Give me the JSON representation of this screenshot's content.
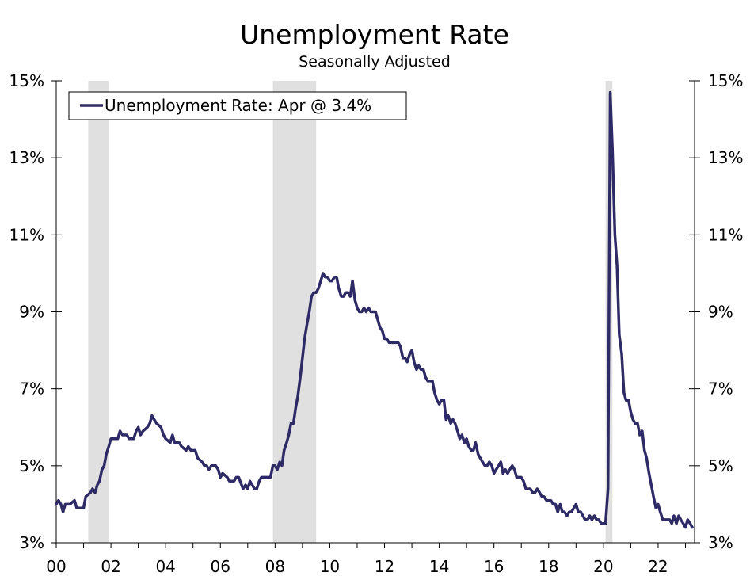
{
  "chart_data": {
    "type": "line",
    "title": "Unemployment Rate",
    "subtitle": "Seasonally Adjusted",
    "xlabel": "",
    "ylabel": "",
    "x_range": [
      2000.0,
      2023.3333
    ],
    "ylim": [
      3,
      15
    ],
    "y_ticks": [
      3,
      5,
      7,
      9,
      11,
      13,
      15
    ],
    "y_tick_labels": [
      "3%",
      "5%",
      "7%",
      "9%",
      "11%",
      "13%",
      "15%"
    ],
    "x_ticks": [
      2000,
      2002,
      2004,
      2006,
      2008,
      2010,
      2012,
      2014,
      2016,
      2018,
      2020,
      2022
    ],
    "x_tick_labels": [
      "00",
      "02",
      "04",
      "06",
      "08",
      "10",
      "12",
      "14",
      "16",
      "18",
      "20",
      "22"
    ],
    "grid": false,
    "legend": {
      "placement": "top-left",
      "entries": [
        "Unemployment Rate: Apr @ 3.4%"
      ]
    },
    "line_color": "#2e2a66",
    "recession_color": "#e0e0e0",
    "recessions": [
      {
        "start": 2001.17,
        "end": 2001.92
      },
      {
        "start": 2007.92,
        "end": 2009.5
      },
      {
        "start": 2020.08,
        "end": 2020.33
      }
    ],
    "series": [
      {
        "name": "Unemployment Rate: Apr @ 3.4%",
        "points": [
          [
            2000.0,
            4.0
          ],
          [
            2000.08,
            4.1
          ],
          [
            2000.17,
            4.0
          ],
          [
            2000.25,
            3.8
          ],
          [
            2000.33,
            4.0
          ],
          [
            2000.5,
            4.0
          ],
          [
            2000.67,
            4.1
          ],
          [
            2000.75,
            3.9
          ],
          [
            2000.92,
            3.9
          ],
          [
            2001.0,
            3.9
          ],
          [
            2001.08,
            4.2
          ],
          [
            2001.25,
            4.3
          ],
          [
            2001.33,
            4.4
          ],
          [
            2001.42,
            4.3
          ],
          [
            2001.5,
            4.5
          ],
          [
            2001.58,
            4.6
          ],
          [
            2001.67,
            4.9
          ],
          [
            2001.75,
            5.0
          ],
          [
            2001.83,
            5.3
          ],
          [
            2001.92,
            5.5
          ],
          [
            2002.0,
            5.7
          ],
          [
            2002.17,
            5.7
          ],
          [
            2002.25,
            5.7
          ],
          [
            2002.33,
            5.9
          ],
          [
            2002.42,
            5.8
          ],
          [
            2002.58,
            5.8
          ],
          [
            2002.67,
            5.7
          ],
          [
            2002.83,
            5.7
          ],
          [
            2002.92,
            5.9
          ],
          [
            2003.0,
            6.0
          ],
          [
            2003.08,
            5.8
          ],
          [
            2003.17,
            5.9
          ],
          [
            2003.33,
            6.0
          ],
          [
            2003.42,
            6.1
          ],
          [
            2003.5,
            6.3
          ],
          [
            2003.58,
            6.2
          ],
          [
            2003.67,
            6.1
          ],
          [
            2003.83,
            6.0
          ],
          [
            2003.92,
            5.8
          ],
          [
            2004.0,
            5.7
          ],
          [
            2004.17,
            5.6
          ],
          [
            2004.25,
            5.8
          ],
          [
            2004.33,
            5.6
          ],
          [
            2004.5,
            5.6
          ],
          [
            2004.58,
            5.5
          ],
          [
            2004.75,
            5.4
          ],
          [
            2004.83,
            5.5
          ],
          [
            2004.92,
            5.4
          ],
          [
            2005.08,
            5.4
          ],
          [
            2005.17,
            5.2
          ],
          [
            2005.33,
            5.1
          ],
          [
            2005.42,
            5.0
          ],
          [
            2005.5,
            5.0
          ],
          [
            2005.58,
            4.9
          ],
          [
            2005.67,
            5.0
          ],
          [
            2005.83,
            5.0
          ],
          [
            2005.92,
            4.9
          ],
          [
            2006.0,
            4.7
          ],
          [
            2006.08,
            4.8
          ],
          [
            2006.25,
            4.7
          ],
          [
            2006.33,
            4.6
          ],
          [
            2006.5,
            4.6
          ],
          [
            2006.58,
            4.7
          ],
          [
            2006.67,
            4.7
          ],
          [
            2006.83,
            4.4
          ],
          [
            2006.92,
            4.5
          ],
          [
            2007.0,
            4.4
          ],
          [
            2007.08,
            4.6
          ],
          [
            2007.25,
            4.4
          ],
          [
            2007.33,
            4.4
          ],
          [
            2007.42,
            4.6
          ],
          [
            2007.5,
            4.7
          ],
          [
            2007.67,
            4.7
          ],
          [
            2007.75,
            4.7
          ],
          [
            2007.83,
            4.7
          ],
          [
            2007.92,
            5.0
          ],
          [
            2008.0,
            5.0
          ],
          [
            2008.08,
            4.9
          ],
          [
            2008.17,
            5.1
          ],
          [
            2008.25,
            5.0
          ],
          [
            2008.33,
            5.4
          ],
          [
            2008.42,
            5.6
          ],
          [
            2008.5,
            5.8
          ],
          [
            2008.58,
            6.1
          ],
          [
            2008.67,
            6.1
          ],
          [
            2008.75,
            6.5
          ],
          [
            2008.83,
            6.8
          ],
          [
            2008.92,
            7.3
          ],
          [
            2009.0,
            7.8
          ],
          [
            2009.08,
            8.3
          ],
          [
            2009.17,
            8.7
          ],
          [
            2009.25,
            9.0
          ],
          [
            2009.33,
            9.4
          ],
          [
            2009.42,
            9.5
          ],
          [
            2009.5,
            9.5
          ],
          [
            2009.58,
            9.6
          ],
          [
            2009.67,
            9.8
          ],
          [
            2009.75,
            10.0
          ],
          [
            2009.83,
            9.9
          ],
          [
            2009.92,
            9.9
          ],
          [
            2010.0,
            9.8
          ],
          [
            2010.08,
            9.8
          ],
          [
            2010.17,
            9.9
          ],
          [
            2010.25,
            9.9
          ],
          [
            2010.33,
            9.6
          ],
          [
            2010.42,
            9.4
          ],
          [
            2010.5,
            9.4
          ],
          [
            2010.58,
            9.5
          ],
          [
            2010.67,
            9.5
          ],
          [
            2010.75,
            9.4
          ],
          [
            2010.83,
            9.8
          ],
          [
            2010.92,
            9.3
          ],
          [
            2011.0,
            9.1
          ],
          [
            2011.08,
            9.0
          ],
          [
            2011.17,
            9.0
          ],
          [
            2011.25,
            9.1
          ],
          [
            2011.33,
            9.0
          ],
          [
            2011.42,
            9.1
          ],
          [
            2011.5,
            9.0
          ],
          [
            2011.58,
            9.0
          ],
          [
            2011.67,
            9.0
          ],
          [
            2011.75,
            8.8
          ],
          [
            2011.83,
            8.6
          ],
          [
            2011.92,
            8.5
          ],
          [
            2012.0,
            8.3
          ],
          [
            2012.08,
            8.3
          ],
          [
            2012.17,
            8.2
          ],
          [
            2012.42,
            8.2
          ],
          [
            2012.5,
            8.2
          ],
          [
            2012.58,
            8.1
          ],
          [
            2012.67,
            7.8
          ],
          [
            2012.75,
            7.8
          ],
          [
            2012.83,
            7.7
          ],
          [
            2012.92,
            7.9
          ],
          [
            2013.0,
            8.0
          ],
          [
            2013.08,
            7.7
          ],
          [
            2013.17,
            7.5
          ],
          [
            2013.25,
            7.6
          ],
          [
            2013.33,
            7.5
          ],
          [
            2013.42,
            7.5
          ],
          [
            2013.5,
            7.3
          ],
          [
            2013.58,
            7.2
          ],
          [
            2013.67,
            7.2
          ],
          [
            2013.75,
            7.2
          ],
          [
            2013.83,
            6.9
          ],
          [
            2013.92,
            6.7
          ],
          [
            2014.0,
            6.6
          ],
          [
            2014.08,
            6.7
          ],
          [
            2014.17,
            6.7
          ],
          [
            2014.25,
            6.2
          ],
          [
            2014.33,
            6.3
          ],
          [
            2014.42,
            6.1
          ],
          [
            2014.5,
            6.2
          ],
          [
            2014.58,
            6.1
          ],
          [
            2014.67,
            5.9
          ],
          [
            2014.75,
            5.7
          ],
          [
            2014.83,
            5.8
          ],
          [
            2014.92,
            5.6
          ],
          [
            2015.0,
            5.7
          ],
          [
            2015.08,
            5.5
          ],
          [
            2015.17,
            5.4
          ],
          [
            2015.25,
            5.4
          ],
          [
            2015.33,
            5.6
          ],
          [
            2015.42,
            5.3
          ],
          [
            2015.5,
            5.2
          ],
          [
            2015.58,
            5.1
          ],
          [
            2015.67,
            5.0
          ],
          [
            2015.75,
            5.0
          ],
          [
            2015.83,
            5.1
          ],
          [
            2015.92,
            5.0
          ],
          [
            2016.0,
            4.8
          ],
          [
            2016.08,
            4.9
          ],
          [
            2016.17,
            5.0
          ],
          [
            2016.25,
            5.1
          ],
          [
            2016.33,
            4.8
          ],
          [
            2016.42,
            4.9
          ],
          [
            2016.5,
            4.8
          ],
          [
            2016.58,
            4.9
          ],
          [
            2016.67,
            5.0
          ],
          [
            2016.75,
            4.9
          ],
          [
            2016.83,
            4.7
          ],
          [
            2016.92,
            4.7
          ],
          [
            2017.0,
            4.7
          ],
          [
            2017.08,
            4.6
          ],
          [
            2017.17,
            4.4
          ],
          [
            2017.25,
            4.4
          ],
          [
            2017.33,
            4.4
          ],
          [
            2017.42,
            4.3
          ],
          [
            2017.5,
            4.3
          ],
          [
            2017.58,
            4.4
          ],
          [
            2017.67,
            4.3
          ],
          [
            2017.75,
            4.2
          ],
          [
            2017.83,
            4.2
          ],
          [
            2017.92,
            4.1
          ],
          [
            2018.0,
            4.1
          ],
          [
            2018.08,
            4.1
          ],
          [
            2018.17,
            4.0
          ],
          [
            2018.25,
            4.0
          ],
          [
            2018.33,
            3.8
          ],
          [
            2018.42,
            4.0
          ],
          [
            2018.5,
            3.8
          ],
          [
            2018.58,
            3.8
          ],
          [
            2018.67,
            3.7
          ],
          [
            2018.75,
            3.8
          ],
          [
            2018.83,
            3.8
          ],
          [
            2018.92,
            3.9
          ],
          [
            2019.0,
            4.0
          ],
          [
            2019.08,
            3.8
          ],
          [
            2019.17,
            3.8
          ],
          [
            2019.25,
            3.7
          ],
          [
            2019.33,
            3.6
          ],
          [
            2019.42,
            3.6
          ],
          [
            2019.5,
            3.7
          ],
          [
            2019.58,
            3.6
          ],
          [
            2019.67,
            3.7
          ],
          [
            2019.75,
            3.6
          ],
          [
            2019.83,
            3.6
          ],
          [
            2019.92,
            3.5
          ],
          [
            2020.0,
            3.5
          ],
          [
            2020.08,
            3.5
          ],
          [
            2020.17,
            4.4
          ],
          [
            2020.25,
            14.7
          ],
          [
            2020.33,
            13.2
          ],
          [
            2020.42,
            11.0
          ],
          [
            2020.5,
            10.2
          ],
          [
            2020.58,
            8.4
          ],
          [
            2020.67,
            7.9
          ],
          [
            2020.75,
            6.9
          ],
          [
            2020.83,
            6.7
          ],
          [
            2020.92,
            6.7
          ],
          [
            2021.0,
            6.4
          ],
          [
            2021.08,
            6.2
          ],
          [
            2021.17,
            6.1
          ],
          [
            2021.25,
            6.1
          ],
          [
            2021.33,
            5.8
          ],
          [
            2021.42,
            5.9
          ],
          [
            2021.5,
            5.4
          ],
          [
            2021.58,
            5.2
          ],
          [
            2021.67,
            4.8
          ],
          [
            2021.75,
            4.5
          ],
          [
            2021.83,
            4.2
          ],
          [
            2021.92,
            3.9
          ],
          [
            2022.0,
            4.0
          ],
          [
            2022.08,
            3.8
          ],
          [
            2022.17,
            3.6
          ],
          [
            2022.25,
            3.6
          ],
          [
            2022.33,
            3.6
          ],
          [
            2022.42,
            3.6
          ],
          [
            2022.5,
            3.5
          ],
          [
            2022.58,
            3.7
          ],
          [
            2022.67,
            3.5
          ],
          [
            2022.75,
            3.7
          ],
          [
            2022.83,
            3.6
          ],
          [
            2022.92,
            3.5
          ],
          [
            2023.0,
            3.4
          ],
          [
            2023.08,
            3.6
          ],
          [
            2023.17,
            3.5
          ],
          [
            2023.25,
            3.4
          ]
        ]
      }
    ]
  }
}
